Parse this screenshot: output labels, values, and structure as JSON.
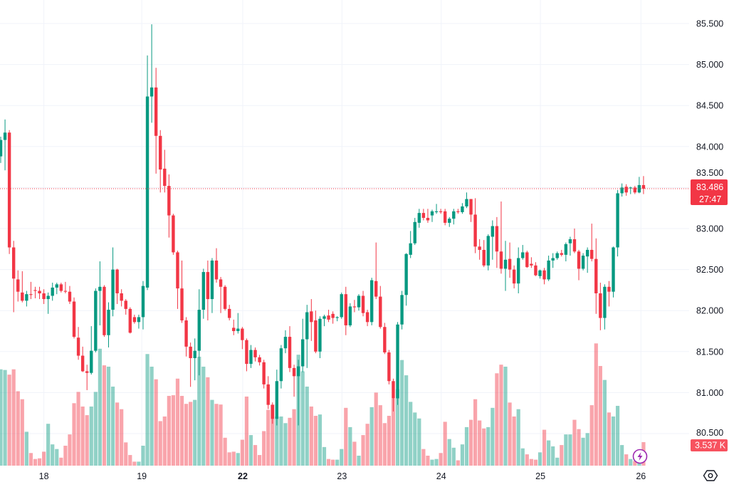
{
  "colors": {
    "up": "#089981",
    "down": "#F23645",
    "up_volume": "rgba(8,153,129,0.45)",
    "down_volume": "rgba(242,54,69,0.45)",
    "grid": "#F0F3FA",
    "bolt": "#9C27B0"
  },
  "price_label": {
    "value": "83.486",
    "countdown": "27:47"
  },
  "volume_label": {
    "value": "3.537 K"
  },
  "icons": {
    "settings": "settings-hexagon-icon",
    "bolt": "lightning-icon"
  },
  "chart_data": {
    "type": "candlestick",
    "title": "",
    "ylim": [
      80.5,
      85.5
    ],
    "y_ticks": [
      "85.500",
      "85.000",
      "84.500",
      "84.000",
      "83.500",
      "83.000",
      "82.500",
      "82.000",
      "81.500",
      "81.000",
      "80.500"
    ],
    "y_tick_values": [
      85.5,
      85.0,
      84.5,
      84.0,
      83.5,
      83.0,
      82.5,
      82.0,
      81.5,
      81.0,
      80.5
    ],
    "x_ticks": [
      {
        "label": "18",
        "candle_index": 10,
        "bold": false
      },
      {
        "label": "19",
        "candle_index": 32.7,
        "bold": false
      },
      {
        "label": "22",
        "candle_index": 56.1,
        "bold": true
      },
      {
        "label": "23",
        "candle_index": 79.1,
        "bold": false
      },
      {
        "label": "24",
        "candle_index": 102.1,
        "bold": false
      },
      {
        "label": "25",
        "candle_index": 125.1,
        "bold": false
      },
      {
        "label": "26",
        "candle_index": 148.4,
        "bold": false
      }
    ],
    "last_price": 83.486,
    "volume_unit": "K",
    "candles_columns": [
      "open",
      "high",
      "low",
      "close",
      "volume_k"
    ],
    "candles": [
      [
        83.88,
        84.12,
        83.8,
        84.08,
        14.5
      ],
      [
        84.08,
        84.33,
        83.71,
        84.17,
        14.4
      ],
      [
        84.17,
        84.2,
        82.69,
        82.77,
        13.7
      ],
      [
        82.77,
        82.85,
        81.98,
        82.39,
        14.5
      ],
      [
        82.38,
        82.49,
        82.11,
        82.23,
        11.2
      ],
      [
        82.22,
        82.48,
        82.1,
        82.12,
        10.0
      ],
      [
        82.12,
        82.24,
        82.05,
        82.2,
        5.1
      ],
      [
        82.2,
        82.35,
        82.14,
        82.19,
        1.9
      ],
      [
        82.25,
        82.29,
        82.15,
        82.24,
        1.0
      ],
      [
        82.24,
        82.29,
        82.14,
        82.21,
        1.1
      ],
      [
        82.21,
        82.26,
        82.08,
        82.14,
        2.1
      ],
      [
        82.14,
        82.22,
        81.96,
        82.18,
        6.3
      ],
      [
        82.18,
        82.34,
        82.12,
        82.28,
        3.2
      ],
      [
        82.28,
        82.34,
        82.2,
        82.32,
        2.5
      ],
      [
        82.32,
        82.34,
        82.22,
        82.24,
        1.2
      ],
      [
        82.24,
        82.35,
        82.21,
        82.23,
        3.0
      ],
      [
        82.23,
        82.3,
        82.08,
        82.11,
        4.7
      ],
      [
        82.11,
        82.16,
        81.66,
        81.68,
        9.4
      ],
      [
        81.67,
        81.8,
        81.4,
        81.45,
        11.1
      ],
      [
        81.45,
        81.56,
        81.25,
        81.26,
        8.9
      ],
      [
        81.26,
        81.34,
        81.03,
        81.24,
        7.6
      ],
      [
        81.24,
        81.81,
        81.22,
        81.51,
        8.9
      ],
      [
        81.51,
        82.27,
        81.49,
        82.24,
        11.1
      ],
      [
        82.24,
        82.6,
        81.82,
        82.29,
        17.6
      ],
      [
        82.29,
        82.31,
        81.68,
        81.7,
        15.1
      ],
      [
        81.7,
        82.1,
        81.55,
        82.01,
        14.9
      ],
      [
        82.01,
        82.77,
        81.93,
        82.5,
        11.9
      ],
      [
        82.5,
        82.51,
        82.08,
        82.21,
        9.5
      ],
      [
        82.21,
        82.26,
        82.05,
        82.12,
        8.5
      ],
      [
        82.12,
        82.14,
        81.95,
        82.02,
        3.5
      ],
      [
        82.02,
        82.04,
        81.72,
        81.73,
        1.6
      ],
      [
        81.92,
        81.95,
        81.84,
        81.86,
        0.6
      ],
      [
        81.86,
        81.95,
        81.78,
        81.92,
        0.6
      ],
      [
        81.92,
        82.36,
        81.77,
        82.3,
        3.0
      ],
      [
        82.28,
        85.11,
        82.25,
        84.61,
        16.8
      ],
      [
        84.61,
        85.49,
        84.29,
        84.72,
        14.9
      ],
      [
        84.72,
        84.96,
        83.67,
        84.13,
        13.0
      ],
      [
        84.13,
        84.2,
        83.44,
        83.72,
        6.7
      ],
      [
        83.73,
        83.96,
        83.44,
        83.52,
        7.4
      ],
      [
        83.52,
        83.66,
        82.89,
        83.16,
        10.5
      ],
      [
        83.16,
        83.18,
        82.68,
        82.71,
        10.6
      ],
      [
        82.71,
        82.73,
        82.02,
        82.27,
        13.1
      ],
      [
        82.27,
        82.61,
        81.85,
        81.88,
        10.5
      ],
      [
        81.88,
        81.92,
        81.44,
        81.56,
        9.3
      ],
      [
        81.56,
        81.61,
        81.07,
        81.42,
        9.6
      ],
      [
        81.42,
        81.66,
        81.15,
        81.51,
        9.9
      ],
      [
        81.51,
        82.26,
        81.21,
        82.01,
        16.4
      ],
      [
        82.01,
        82.51,
        81.9,
        82.47,
        14.9
      ],
      [
        82.47,
        82.61,
        81.88,
        82.14,
        13.3
      ],
      [
        82.14,
        82.64,
        81.97,
        82.61,
        9.9
      ],
      [
        82.61,
        82.76,
        82.34,
        82.38,
        9.3
      ],
      [
        82.38,
        82.41,
        81.97,
        82.29,
        9.2
      ],
      [
        82.29,
        82.31,
        82.0,
        82.02,
        4.2
      ],
      [
        82.02,
        82.07,
        81.88,
        81.91,
        2.0
      ],
      [
        81.79,
        81.89,
        81.7,
        81.75,
        2.1
      ],
      [
        81.75,
        81.97,
        81.72,
        81.78,
        1.9
      ],
      [
        81.78,
        81.8,
        81.53,
        81.64,
        3.9
      ],
      [
        81.64,
        81.66,
        81.26,
        81.35,
        10.4
      ],
      [
        81.35,
        81.58,
        81.3,
        81.52,
        4.6
      ],
      [
        81.52,
        81.55,
        81.38,
        81.43,
        3.1
      ],
      [
        81.43,
        81.46,
        81.33,
        81.37,
        1.6
      ],
      [
        81.37,
        81.4,
        81.05,
        81.1,
        5.2
      ],
      [
        81.1,
        81.2,
        80.8,
        80.85,
        8.4
      ],
      [
        80.85,
        80.88,
        80.62,
        80.68,
        9.2
      ],
      [
        80.68,
        81.28,
        80.6,
        81.14,
        7.4
      ],
      [
        81.14,
        81.58,
        81.05,
        81.54,
        7.4
      ],
      [
        81.54,
        81.76,
        81.48,
        81.68,
        6.4
      ],
      [
        81.68,
        81.81,
        81.25,
        81.3,
        7.2
      ],
      [
        81.3,
        81.34,
        80.95,
        81.2,
        8.5
      ],
      [
        81.2,
        81.4,
        80.6,
        81.32,
        16.7
      ],
      [
        81.32,
        81.9,
        81.25,
        81.65,
        14.2
      ],
      [
        81.65,
        82.07,
        81.3,
        81.98,
        11.9
      ],
      [
        81.99,
        82.14,
        81.63,
        81.86,
        8.9
      ],
      [
        81.88,
        82.0,
        81.48,
        81.5,
        7.5
      ],
      [
        81.5,
        81.93,
        81.42,
        81.9,
        7.7
      ],
      [
        81.9,
        81.95,
        81.81,
        81.93,
        2.8
      ],
      [
        81.94,
        82.01,
        81.86,
        81.89,
        1.0
      ],
      [
        81.96,
        81.99,
        81.84,
        81.91,
        0.9
      ],
      [
        81.91,
        81.93,
        81.87,
        81.92,
        0.9
      ],
      [
        81.92,
        82.22,
        81.9,
        82.2,
        2.5
      ],
      [
        82.2,
        82.29,
        81.7,
        81.82,
        8.7
      ],
      [
        81.82,
        82.09,
        81.8,
        82.05,
        5.8
      ],
      [
        82.05,
        82.13,
        81.98,
        82.04,
        3.6
      ],
      [
        82.04,
        82.2,
        82.0,
        82.18,
        1.5
      ],
      [
        82.18,
        82.24,
        81.93,
        81.97,
        4.6
      ],
      [
        81.98,
        82.01,
        81.81,
        81.86,
        6.3
      ],
      [
        81.86,
        82.4,
        81.82,
        82.37,
        8.8
      ],
      [
        82.36,
        82.83,
        82.14,
        82.17,
        11.0
      ],
      [
        82.17,
        82.3,
        81.78,
        81.8,
        9.1
      ],
      [
        81.8,
        81.85,
        81.47,
        81.49,
        6.4
      ],
      [
        81.49,
        81.52,
        81.1,
        81.14,
        7.5
      ],
      [
        81.14,
        81.17,
        80.77,
        80.93,
        10.1
      ],
      [
        80.93,
        81.86,
        80.85,
        81.83,
        11.5
      ],
      [
        81.83,
        82.24,
        81.77,
        82.19,
        15.9
      ],
      [
        82.19,
        82.7,
        82.06,
        82.69,
        13.6
      ],
      [
        82.68,
        82.97,
        82.64,
        82.82,
        9.6
      ],
      [
        82.82,
        83.13,
        82.8,
        83.08,
        8.0
      ],
      [
        83.07,
        83.24,
        83.01,
        83.19,
        7.1
      ],
      [
        83.19,
        83.24,
        83.1,
        83.13,
        2.5
      ],
      [
        83.13,
        83.24,
        83.07,
        83.1,
        1.5
      ],
      [
        83.16,
        83.23,
        83.08,
        83.21,
        0.9
      ],
      [
        83.2,
        83.3,
        83.18,
        83.21,
        1.0
      ],
      [
        83.21,
        83.24,
        83.18,
        83.2,
        1.9
      ],
      [
        83.21,
        83.24,
        83.04,
        83.07,
        6.6
      ],
      [
        83.07,
        83.14,
        83.02,
        83.12,
        4.0
      ],
      [
        83.12,
        83.24,
        83.05,
        83.21,
        2.7
      ],
      [
        83.21,
        83.24,
        83.18,
        83.2,
        0.8
      ],
      [
        83.2,
        83.31,
        83.18,
        83.27,
        3.2
      ],
      [
        83.27,
        83.44,
        83.25,
        83.36,
        5.8
      ],
      [
        83.36,
        83.36,
        83.08,
        83.17,
        6.9
      ],
      [
        83.17,
        83.37,
        82.7,
        82.78,
        10.0
      ],
      [
        82.78,
        82.87,
        82.62,
        82.74,
        6.8
      ],
      [
        82.74,
        82.86,
        82.53,
        82.55,
        5.6
      ],
      [
        82.55,
        82.93,
        82.49,
        82.91,
        5.8
      ],
      [
        82.9,
        83.1,
        82.62,
        83.03,
        8.7
      ],
      [
        83.03,
        83.14,
        82.52,
        82.72,
        13.9
      ],
      [
        82.72,
        83.33,
        82.45,
        82.51,
        15.2
      ],
      [
        82.51,
        82.85,
        82.24,
        82.62,
        14.9
      ],
      [
        82.63,
        82.83,
        82.4,
        82.5,
        9.5
      ],
      [
        82.5,
        82.55,
        82.27,
        82.33,
        7.4
      ],
      [
        82.33,
        82.77,
        82.21,
        82.64,
        8.5
      ],
      [
        82.64,
        82.8,
        82.62,
        82.71,
        2.6
      ],
      [
        82.71,
        82.73,
        82.52,
        82.53,
        1.7
      ],
      [
        82.57,
        82.65,
        82.52,
        82.55,
        1.0
      ],
      [
        82.55,
        82.59,
        82.42,
        82.43,
        0.9
      ],
      [
        82.42,
        82.5,
        82.39,
        82.49,
        2.0
      ],
      [
        82.49,
        82.52,
        82.32,
        82.38,
        5.4
      ],
      [
        82.38,
        82.67,
        82.36,
        82.61,
        3.8
      ],
      [
        82.61,
        82.7,
        82.52,
        82.64,
        2.9
      ],
      [
        82.64,
        82.72,
        82.62,
        82.7,
        1.2
      ],
      [
        82.7,
        82.74,
        82.66,
        82.68,
        3.1
      ],
      [
        82.68,
        82.83,
        82.6,
        82.81,
        4.7
      ],
      [
        82.82,
        82.9,
        82.67,
        82.87,
        4.7
      ],
      [
        82.87,
        83.0,
        82.7,
        82.72,
        6.9
      ],
      [
        82.72,
        82.74,
        82.37,
        82.51,
        5.5
      ],
      [
        82.51,
        82.7,
        82.49,
        82.67,
        4.2
      ],
      [
        82.66,
        82.77,
        82.46,
        82.74,
        4.9
      ],
      [
        82.74,
        83.06,
        82.6,
        82.63,
        9.1
      ],
      [
        82.63,
        82.88,
        81.96,
        82.21,
        18.4
      ],
      [
        82.21,
        82.34,
        81.76,
        81.91,
        15.0
      ],
      [
        81.91,
        82.32,
        81.77,
        82.29,
        12.9
      ],
      [
        82.29,
        82.36,
        82.05,
        82.23,
        8.0
      ],
      [
        82.23,
        82.78,
        82.16,
        82.77,
        7.4
      ],
      [
        82.77,
        83.47,
        82.66,
        83.43,
        9.0
      ],
      [
        83.43,
        83.55,
        83.39,
        83.5,
        3.1
      ],
      [
        83.51,
        83.54,
        83.4,
        83.44,
        1.7
      ],
      [
        83.49,
        83.51,
        83.42,
        83.5,
        1.0
      ],
      [
        83.5,
        83.52,
        83.42,
        83.44,
        0.7
      ],
      [
        83.44,
        83.63,
        83.43,
        83.53,
        0.6
      ],
      [
        83.53,
        83.64,
        83.42,
        83.486,
        3.537
      ]
    ]
  }
}
